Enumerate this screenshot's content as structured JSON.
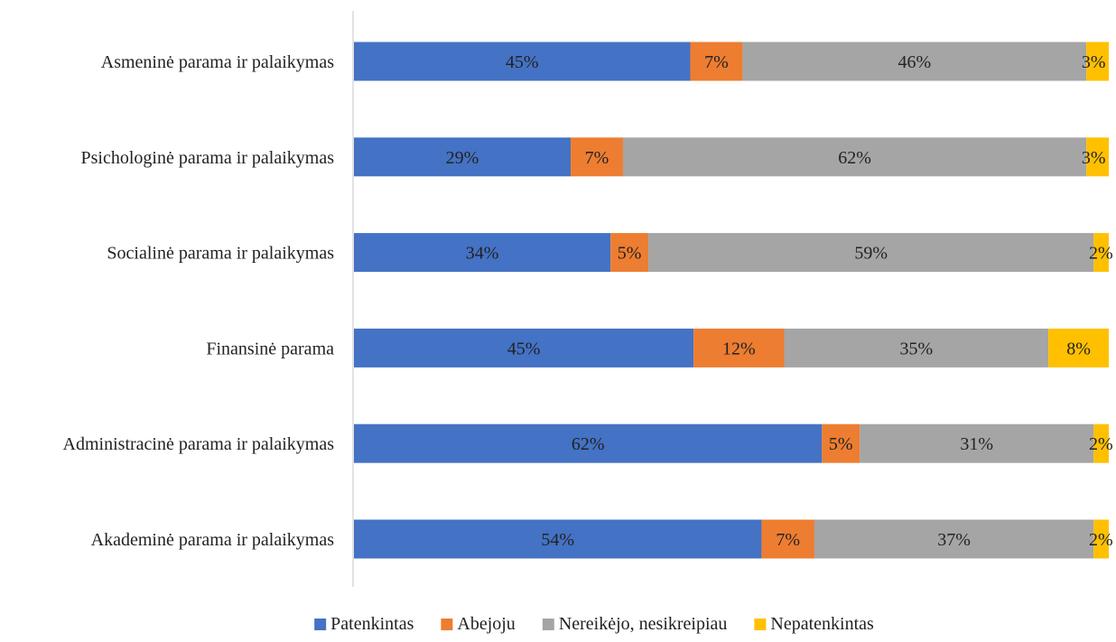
{
  "chart_data": {
    "type": "bar",
    "orientation": "horizontal",
    "stacked": true,
    "percent_stacked": true,
    "title": "",
    "xlabel": "",
    "ylabel": "",
    "categories": [
      "Asmeninė parama ir palaikymas",
      "Psichologinė parama ir palaikymas",
      "Socialinė parama ir palaikymas",
      "Finansinė parama",
      "Administracinė parama ir palaikymas",
      "Akademinė parama ir palaikymas"
    ],
    "series": [
      {
        "name": "Patenkintas",
        "color": "#4472C4",
        "values": [
          45,
          29,
          34,
          45,
          62,
          54
        ],
        "labels": [
          "45%",
          "29%",
          "34%",
          "45%",
          "62%",
          "54%"
        ]
      },
      {
        "name": "Abejoju",
        "color": "#ED7D31",
        "values": [
          7,
          7,
          5,
          12,
          5,
          7
        ],
        "labels": [
          "7%",
          "7%",
          "5%",
          "12%",
          "5%",
          "7%"
        ]
      },
      {
        "name": "Nereikėjo, nesikreipiau",
        "color": "#A5A5A5",
        "values": [
          46,
          62,
          59,
          35,
          31,
          37
        ],
        "labels": [
          "46%",
          "62%",
          "59%",
          "35%",
          "31%",
          "37%"
        ]
      },
      {
        "name": "Nepatenkintas",
        "color": "#FFC000",
        "values": [
          3,
          3,
          2,
          8,
          2,
          2
        ],
        "labels": [
          "3%",
          "3%",
          "2%",
          "8%",
          "2%",
          "2%"
        ]
      }
    ],
    "xlim": [
      0,
      100
    ],
    "grid": false,
    "legend_position": "bottom"
  }
}
